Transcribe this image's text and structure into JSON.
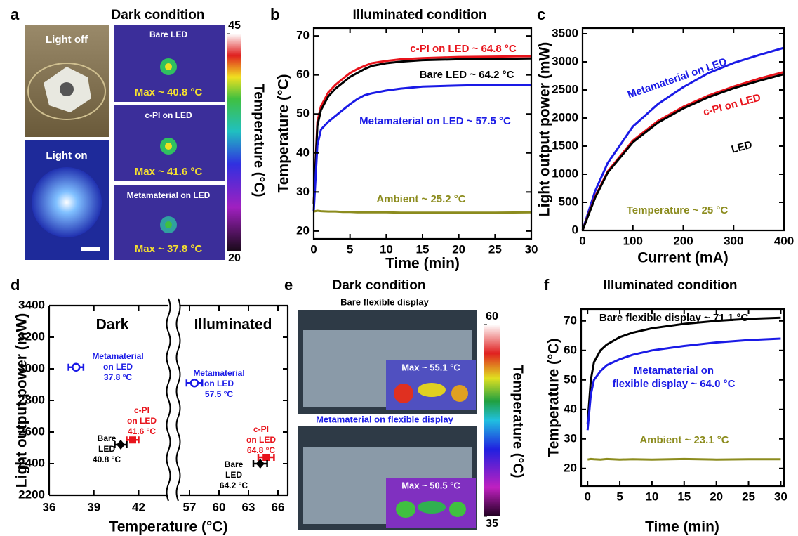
{
  "photo_panels": [
    {
      "panel": "a",
      "title": "Dark condition",
      "images": [
        {
          "label": "Light off"
        },
        {
          "label": "Light on"
        },
        {
          "label": "Bare LED",
          "max": "Max ~ 40.8 °C"
        },
        {
          "label": "c-PI on LED",
          "max": "Max ~ 41.6 °C"
        },
        {
          "label": "Metamaterial on LED",
          "max": "Max ~ 37.8 °C"
        }
      ],
      "colorbar": {
        "label": "Temperature (°C)",
        "lim": [
          20,
          45
        ],
        "ticks": [
          20,
          45
        ]
      }
    },
    {
      "panel": "e",
      "title": "Dark condition",
      "images": [
        {
          "label": "Bare flexible display",
          "max": "Max ~ 55.1 °C"
        },
        {
          "label": "Metamaterial on flexible display",
          "max": "Max ~ 50.5 °C"
        }
      ],
      "colorbar": {
        "label": "Temperature (°C)",
        "lim": [
          35,
          60
        ],
        "ticks": [
          35,
          60
        ]
      }
    }
  ],
  "chart_data": [
    {
      "type": "line",
      "panel": "b",
      "title": "Illuminated condition",
      "x_label": "Time (min)",
      "y_label": "Temperature (°C)",
      "x": [
        0,
        0.5,
        1,
        2,
        3,
        4,
        5,
        6,
        7,
        8,
        10,
        12,
        15,
        20,
        25,
        30
      ],
      "series": [
        {
          "color": "#e8141c",
          "values": [
            27,
            48,
            52,
            55.5,
            57.5,
            59,
            60.5,
            61.5,
            62.3,
            63,
            63.6,
            64,
            64.3,
            64.6,
            64.7,
            64.8
          ]
        },
        {
          "color": "#000000",
          "values": [
            27,
            47,
            51,
            54.5,
            56.5,
            58,
            59.5,
            60.5,
            61.5,
            62.3,
            63,
            63.4,
            63.8,
            64,
            64.1,
            64.2
          ]
        },
        {
          "color": "#1a1ae6",
          "values": [
            25,
            42,
            46,
            48,
            49.5,
            51,
            52.5,
            53.8,
            54.8,
            55.3,
            56,
            56.5,
            57,
            57.3,
            57.5,
            57.5
          ]
        },
        {
          "color": "#8c8c1e",
          "values": [
            25,
            25.2,
            25.1,
            25,
            25,
            24.9,
            24.9,
            24.8,
            24.8,
            24.8,
            24.8,
            24.7,
            24.7,
            24.7,
            24.7,
            24.8
          ]
        }
      ],
      "annotations": [
        {
          "text": "c-PI on LED ~ 64.8 °C",
          "color": "#e8141c"
        },
        {
          "text": "Bare LED ~ 64.2 °C",
          "color": "#000000"
        },
        {
          "text": "Metamaterial on LED ~ 57.5 °C",
          "color": "#1a1ae6"
        },
        {
          "text": "Ambient ~ 25.2 °C",
          "color": "#8c8c1e"
        }
      ],
      "xlim": [
        0,
        30
      ],
      "xticks": [
        0,
        5,
        10,
        15,
        20,
        25,
        30
      ],
      "ylim": [
        18,
        72
      ],
      "yticks": [
        20,
        30,
        40,
        50,
        60,
        70
      ]
    },
    {
      "type": "line",
      "panel": "c",
      "x_label": "Current (mA)",
      "y_label": "Light output power (mW)",
      "x": [
        0,
        25,
        50,
        100,
        150,
        200,
        250,
        300,
        350,
        400
      ],
      "series": [
        {
          "name": "Metamaterial on LED",
          "color": "#1a1ae6",
          "values": [
            0,
            700,
            1200,
            1850,
            2250,
            2550,
            2800,
            2980,
            3120,
            3250
          ]
        },
        {
          "name": "c-PI on LED",
          "color": "#e8141c",
          "values": [
            0,
            600,
            1050,
            1600,
            1950,
            2200,
            2400,
            2560,
            2700,
            2820
          ]
        },
        {
          "name": "LED",
          "color": "#000000",
          "values": [
            0,
            580,
            1030,
            1570,
            1920,
            2170,
            2370,
            2530,
            2660,
            2780
          ]
        }
      ],
      "annotations": [
        {
          "text": "Temperature ~ 25 °C",
          "color": "#8c8c1e"
        }
      ],
      "xlim": [
        0,
        400
      ],
      "xticks": [
        0,
        100,
        200,
        300,
        400
      ],
      "ylim": [
        0,
        3600
      ],
      "yticks": [
        0,
        500,
        1000,
        1500,
        2000,
        2500,
        3000,
        3500
      ]
    },
    {
      "type": "scatter",
      "panel": "d",
      "x_label": "Temperature (°C)",
      "y_label": "Light output power (mW)",
      "x_axes": [
        {
          "name": "Dark",
          "xlim": [
            36,
            44
          ],
          "xticks": [
            36,
            39,
            42
          ]
        },
        {
          "name": "Illuminated",
          "xlim": [
            56,
            67
          ],
          "xticks": [
            57,
            60,
            63,
            66
          ]
        }
      ],
      "series": [
        {
          "color": "#1a1ae6",
          "marker": "circle",
          "x": [
            37.8,
            57.5
          ],
          "values": [
            3010,
            2910
          ],
          "xerr": [
            0.5,
            0.8
          ],
          "point_labels": [
            [
              "Metamaterial",
              "on LED",
              "37.8 °C"
            ],
            [
              "Metamaterial",
              "on LED",
              "57.5 °C"
            ]
          ]
        },
        {
          "color": "#e8141c",
          "marker": "square",
          "x": [
            41.6,
            64.8
          ],
          "values": [
            2550,
            2440
          ],
          "xerr": [
            0.4,
            0.8
          ],
          "point_labels": [
            [
              "c-PI",
              "on LED",
              "41.6 °C"
            ],
            [
              "c-PI",
              "on LED",
              "64.8 °C"
            ]
          ]
        },
        {
          "color": "#000000",
          "marker": "diamond",
          "x": [
            40.8,
            64.2
          ],
          "values": [
            2520,
            2400
          ],
          "xerr": [
            0.4,
            0.7
          ],
          "point_labels": [
            [
              "Bare",
              "LED",
              "40.8 °C"
            ],
            [
              "Bare",
              "LED",
              "64.2 °C"
            ]
          ]
        }
      ],
      "ylim": [
        2200,
        3400
      ],
      "yticks": [
        2200,
        2400,
        2600,
        2800,
        3000,
        3200,
        3400
      ]
    },
    {
      "type": "line",
      "panel": "f",
      "title": "Illuminated condition",
      "x_label": "Time (min)",
      "y_label": "Temperature (°C)",
      "x": [
        0,
        0.5,
        1,
        2,
        3,
        5,
        7,
        10,
        15,
        20,
        25,
        30
      ],
      "series": [
        {
          "color": "#000000",
          "values": [
            35,
            50,
            56,
            60,
            62,
            64.5,
            66,
            67.5,
            69,
            70,
            70.7,
            71.1
          ]
        },
        {
          "color": "#1a1ae6",
          "values": [
            33,
            45,
            50,
            53,
            55,
            57,
            58.5,
            60,
            61.5,
            62.7,
            63.5,
            64
          ]
        },
        {
          "color": "#8c8c1e",
          "values": [
            23,
            23.2,
            23.1,
            23,
            23.2,
            23,
            23.1,
            23,
            23.2,
            23,
            23.1,
            23.1
          ]
        }
      ],
      "annotations": [
        {
          "text": "Bare flexible display ~ 71.1 °C",
          "color": "#000000"
        },
        {
          "lines": [
            "Metamaterial on",
            "flexible display ~ 64.0 °C"
          ],
          "color": "#1a1ae6"
        },
        {
          "text": "Ambient ~ 23.1 °C",
          "color": "#8c8c1e"
        }
      ],
      "xlim": [
        -1,
        30.5
      ],
      "xticks": [
        0,
        5,
        10,
        15,
        20,
        25,
        30
      ],
      "ylim": [
        14,
        74
      ],
      "yticks": [
        20,
        30,
        40,
        50,
        60,
        70
      ]
    }
  ]
}
